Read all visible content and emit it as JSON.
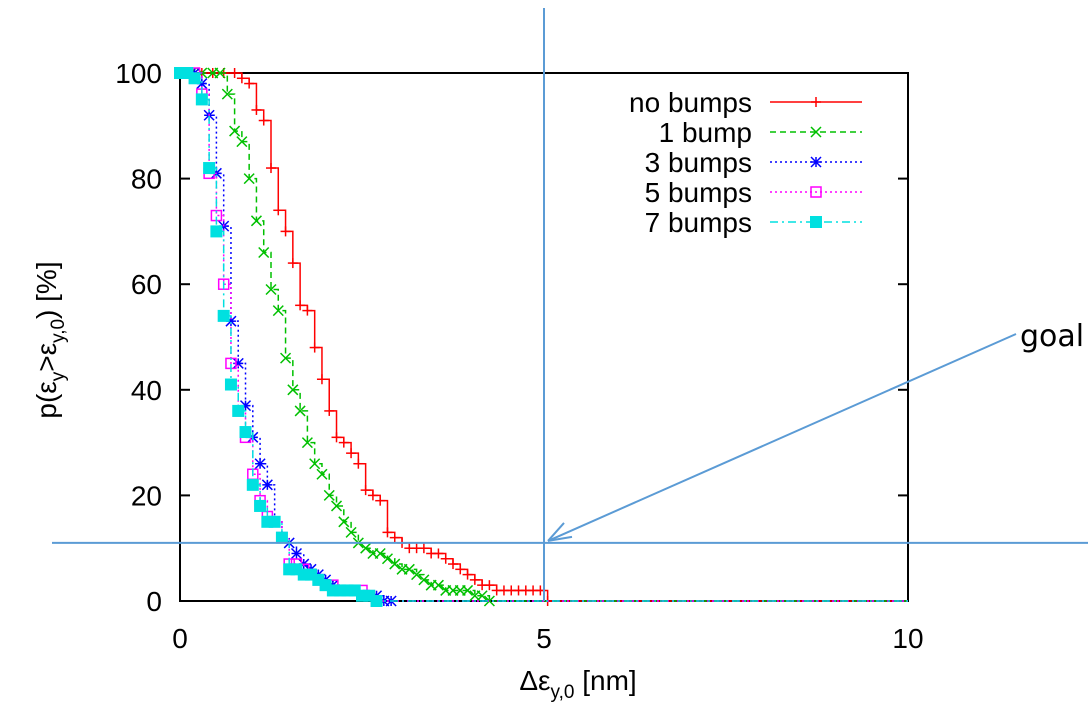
{
  "chart_data": {
    "type": "line",
    "x_ticks": [
      "0",
      "5",
      "10"
    ],
    "y_ticks": [
      "0",
      "20",
      "40",
      "60",
      "80",
      "100"
    ],
    "xlim": [
      0,
      10
    ],
    "ylim": [
      0,
      100
    ],
    "xlabel": {
      "main": "Δε",
      "sub": "y,0",
      "rest": " [nm]"
    },
    "ylabel": {
      "p1": "p(ε",
      "s1": "y",
      "p2": ">ε",
      "s2": "y,0",
      "p3": ") [%]"
    },
    "legend_position": "top-right",
    "grid": false,
    "series": [
      {
        "name": "no bumps",
        "color": "#ff0000",
        "marker": "plus",
        "dash": "",
        "x": [
          0.0,
          0.15,
          0.3,
          0.45,
          0.6,
          0.75,
          0.85,
          0.95,
          1.05,
          1.15,
          1.25,
          1.35,
          1.45,
          1.55,
          1.65,
          1.75,
          1.85,
          1.95,
          2.05,
          2.15,
          2.25,
          2.35,
          2.45,
          2.55,
          2.65,
          2.75,
          2.85,
          2.95,
          3.05,
          3.15,
          3.25,
          3.35,
          3.45,
          3.55,
          3.65,
          3.75,
          3.85,
          3.95,
          4.05,
          4.15,
          4.25,
          4.35,
          4.45,
          4.55,
          4.65,
          4.75,
          4.85,
          4.95,
          5.05,
          10.0
        ],
        "y": [
          100,
          100,
          100,
          100,
          100,
          100,
          99,
          98,
          93,
          91,
          82,
          74,
          70,
          64,
          56,
          55,
          48,
          42,
          36,
          31,
          30,
          28,
          26,
          21,
          20,
          19,
          13,
          12,
          11,
          10,
          10,
          10,
          9,
          9,
          8,
          7,
          6,
          5,
          4,
          3,
          3,
          2,
          2,
          2,
          2,
          2,
          2,
          2,
          0,
          0
        ]
      },
      {
        "name": "1 bump",
        "color": "#00c000",
        "marker": "x",
        "dash": "6,4",
        "x": [
          0.0,
          0.15,
          0.3,
          0.45,
          0.55,
          0.65,
          0.75,
          0.85,
          0.95,
          1.05,
          1.15,
          1.25,
          1.35,
          1.45,
          1.55,
          1.65,
          1.75,
          1.85,
          1.95,
          2.05,
          2.15,
          2.25,
          2.35,
          2.45,
          2.55,
          2.65,
          2.75,
          2.85,
          2.95,
          3.05,
          3.15,
          3.25,
          3.35,
          3.45,
          3.55,
          3.65,
          3.75,
          3.85,
          3.95,
          4.05,
          4.15,
          4.25,
          10.0
        ],
        "y": [
          100,
          100,
          100,
          100,
          100,
          96,
          89,
          87,
          80,
          72,
          66,
          59,
          55,
          46,
          40,
          36,
          30,
          26,
          24,
          20,
          18,
          15,
          13,
          11,
          10,
          9,
          9,
          8,
          7,
          6,
          6,
          5,
          4,
          3,
          3,
          2,
          2,
          2,
          2,
          1,
          1,
          0,
          0
        ]
      },
      {
        "name": "3 bumps",
        "color": "#0000ff",
        "marker": "star",
        "dash": "2,3",
        "x": [
          0.0,
          0.1,
          0.2,
          0.3,
          0.4,
          0.5,
          0.6,
          0.7,
          0.8,
          0.9,
          1.0,
          1.1,
          1.2,
          1.3,
          1.4,
          1.5,
          1.6,
          1.7,
          1.8,
          1.9,
          2.0,
          2.1,
          2.2,
          2.3,
          2.4,
          2.5,
          2.6,
          2.7,
          2.8,
          2.9,
          10.0
        ],
        "y": [
          100,
          100,
          100,
          98,
          92,
          81,
          71,
          53,
          45,
          37,
          31,
          26,
          22,
          15,
          12,
          11,
          9,
          7,
          6,
          5,
          4,
          3,
          2,
          2,
          2,
          1,
          1,
          1,
          0,
          0,
          0
        ]
      },
      {
        "name": "5 bumps",
        "color": "#ff00ff",
        "marker": "square",
        "dash": "2,3",
        "x": [
          0.0,
          0.1,
          0.2,
          0.3,
          0.4,
          0.5,
          0.6,
          0.7,
          0.8,
          0.9,
          1.0,
          1.1,
          1.2,
          1.3,
          1.4,
          1.5,
          1.6,
          1.7,
          1.8,
          1.9,
          2.0,
          2.1,
          2.2,
          2.3,
          2.4,
          2.5,
          2.6,
          2.7,
          10.0
        ],
        "y": [
          100,
          100,
          100,
          96,
          81,
          73,
          60,
          45,
          36,
          31,
          24,
          19,
          16,
          15,
          12,
          7,
          7,
          6,
          5,
          4,
          3,
          3,
          2,
          2,
          2,
          2,
          1,
          0,
          0
        ]
      },
      {
        "name": "7 bumps",
        "color": "#00e0e0",
        "marker": "filled-square",
        "dash": "8,4,2,4",
        "x": [
          0.0,
          0.1,
          0.2,
          0.3,
          0.4,
          0.5,
          0.6,
          0.7,
          0.8,
          0.9,
          1.0,
          1.1,
          1.2,
          1.3,
          1.4,
          1.5,
          1.6,
          1.7,
          1.8,
          1.9,
          2.0,
          2.1,
          2.2,
          2.3,
          2.4,
          2.5,
          2.6,
          2.7,
          10.0
        ],
        "y": [
          100,
          100,
          99,
          95,
          82,
          70,
          54,
          41,
          36,
          32,
          22,
          18,
          15,
          15,
          12,
          6,
          6,
          5,
          5,
          4,
          3,
          2,
          2,
          2,
          2,
          1,
          1,
          0,
          0
        ]
      }
    ],
    "annotations": [
      {
        "label": "goal",
        "target": [
          5,
          11
        ]
      }
    ]
  }
}
